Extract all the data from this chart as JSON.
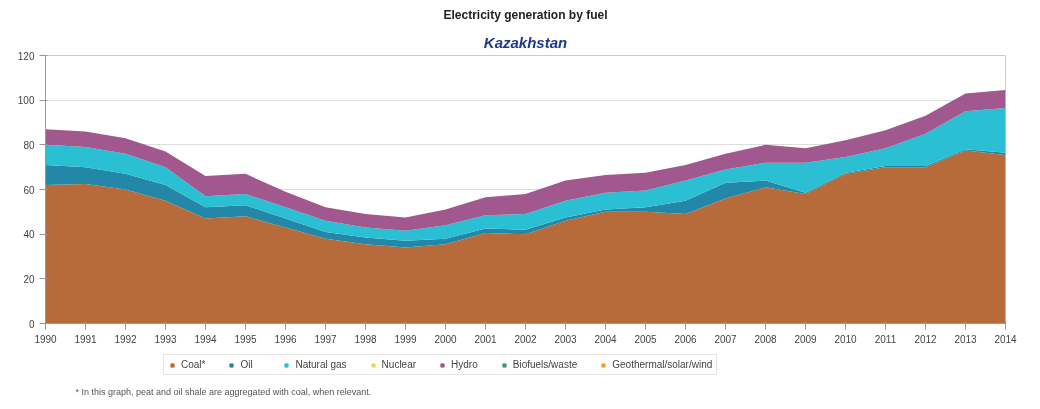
{
  "chart_data": {
    "type": "area",
    "stacked": true,
    "title": "Electricity generation by fuel",
    "subtitle": "Kazakhstan",
    "categories": [
      "1990",
      "1991",
      "1992",
      "1993",
      "1994",
      "1995",
      "1996",
      "1997",
      "1998",
      "1999",
      "2000",
      "2001",
      "2002",
      "2003",
      "2004",
      "2005",
      "2006",
      "2007",
      "2008",
      "2009",
      "2010",
      "2011",
      "2012",
      "2013",
      "2014"
    ],
    "series": [
      {
        "name": "Coal*",
        "color": "#b86b3a",
        "values": [
          62,
          62.5,
          60,
          55,
          47,
          48,
          43,
          38,
          35.5,
          34,
          35.5,
          40.5,
          40,
          46,
          50,
          50,
          49,
          56,
          61,
          58,
          67,
          70,
          70,
          77.5,
          75.5
        ]
      },
      {
        "name": "Oil",
        "color": "#2387a8",
        "values": [
          9,
          7.5,
          7,
          7,
          5,
          5,
          4,
          3,
          3,
          3,
          2.5,
          2,
          2,
          1.5,
          1,
          2,
          6,
          7,
          3,
          0.5,
          0.5,
          0.5,
          0.5,
          0.5,
          1
        ]
      },
      {
        "name": "Natural gas",
        "color": "#2bbfd4",
        "values": [
          9,
          9,
          9,
          8,
          5,
          5,
          5,
          5,
          4.5,
          4.5,
          6,
          6,
          7,
          7.5,
          7.5,
          7.5,
          9,
          6,
          8,
          13.5,
          7,
          8,
          14.5,
          17,
          20
        ]
      },
      {
        "name": "Nuclear",
        "color": "#f2d25a",
        "values": [
          null,
          null,
          null,
          null,
          null,
          null,
          null,
          null,
          null,
          null,
          null,
          null,
          null,
          null,
          null,
          null,
          null,
          null,
          null,
          null,
          null,
          null,
          null,
          null,
          null
        ]
      },
      {
        "name": "Hydro",
        "color": "#a0588e",
        "values": [
          7,
          7,
          7,
          7,
          9,
          9,
          7,
          6,
          6,
          6,
          7,
          8,
          9,
          9,
          8,
          8,
          7,
          7,
          8,
          6.5,
          7.5,
          8,
          8,
          8,
          8
        ]
      },
      {
        "name": "Biofuels/waste",
        "color": "#3a9a7a",
        "values": [
          null,
          null,
          null,
          null,
          null,
          null,
          null,
          null,
          null,
          null,
          null,
          null,
          null,
          null,
          null,
          null,
          null,
          null,
          null,
          null,
          null,
          null,
          null,
          null,
          null
        ]
      },
      {
        "name": "Geothermal/solar/wind",
        "color": "#f0a030",
        "values": [
          null,
          null,
          null,
          null,
          null,
          null,
          null,
          null,
          null,
          null,
          null,
          null,
          null,
          null,
          null,
          null,
          null,
          null,
          null,
          null,
          null,
          null,
          null,
          null,
          null
        ]
      }
    ],
    "ylim": [
      0,
      120
    ],
    "yticks": [
      0,
      20,
      40,
      60,
      80,
      100,
      120
    ],
    "grid": "y",
    "legend": "bottom",
    "annotations": [
      "* In this graph, peat and oil shale are aggregated with coal, when relevant."
    ]
  }
}
